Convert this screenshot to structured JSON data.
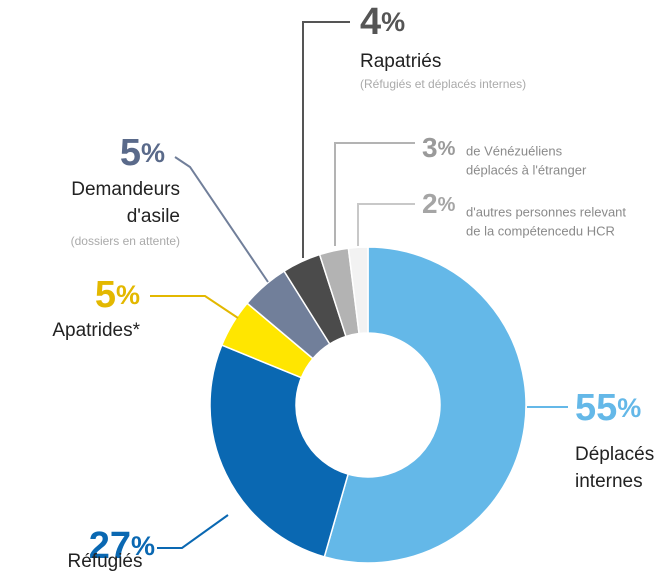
{
  "chart_data": {
    "type": "donut",
    "categories": [
      "Déplacés internes",
      "Réfugiés",
      "Apatrides*",
      "Demandeurs d'asile",
      "Rapatriés",
      "de Vénézuéliens déplacés à l'étranger",
      "d'autres personnes relevant de la compétencedu HCR"
    ],
    "label_lines": [
      [
        "Déplacés",
        "internes"
      ],
      [
        "Réfugiés"
      ],
      [
        "Apatrides*"
      ],
      [
        "Demandeurs",
        "d'asile"
      ],
      [
        "Rapatriés"
      ],
      [
        "de Vénézuéliens",
        "déplacés à l'étranger"
      ],
      [
        "d'autres personnes relevant",
        "de la compétencedu HCR"
      ]
    ],
    "notes": [
      null,
      null,
      null,
      "(dossiers en attente)",
      "(Réfugiés et déplacés internes)",
      null,
      null
    ],
    "values": [
      55,
      27,
      5,
      5,
      4,
      3,
      2
    ],
    "value_labels": [
      "55%",
      "27%",
      "5%",
      "5%",
      "4%",
      "3%",
      "2%"
    ],
    "colors": [
      "#64b8e8",
      "#0a68b2",
      "#ffe600",
      "#717f9a",
      "#4b4b4b",
      "#b3b3b3",
      "#f2f2f2"
    ]
  }
}
